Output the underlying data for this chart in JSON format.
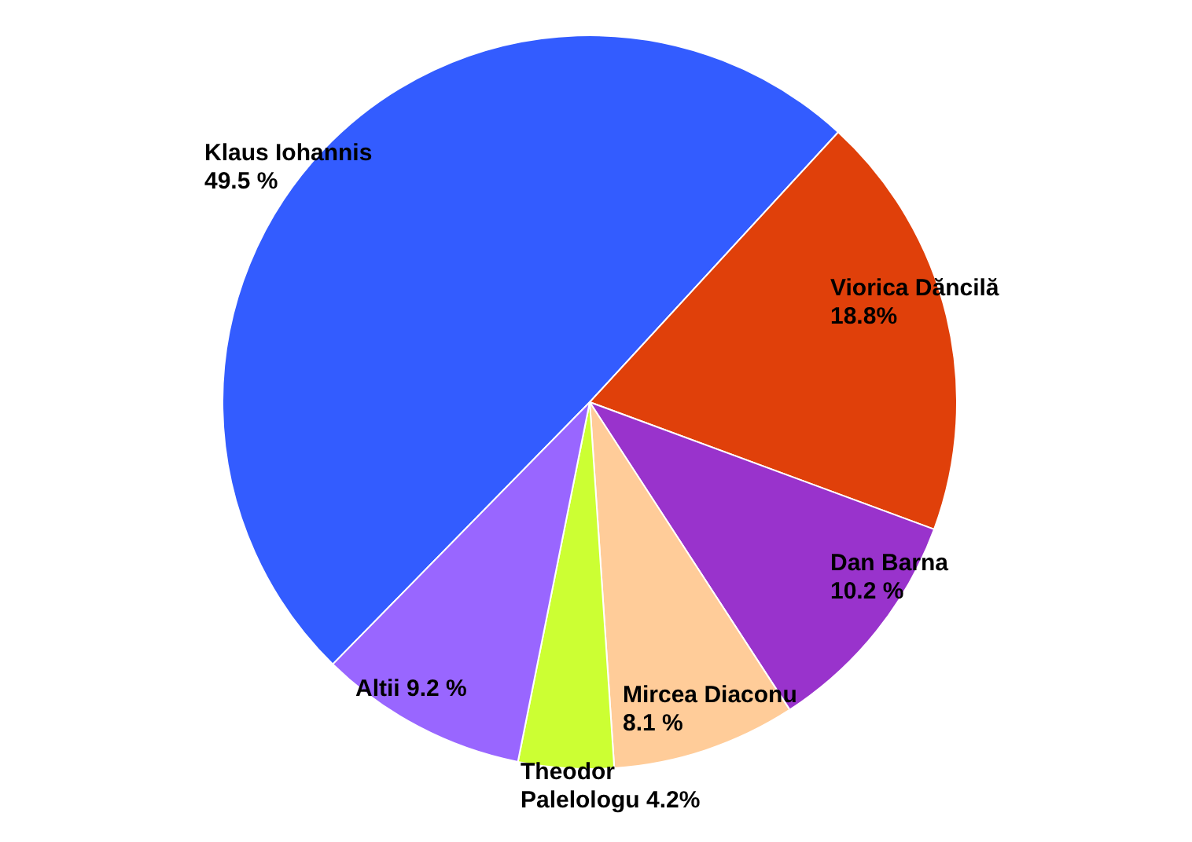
{
  "chart_data": {
    "type": "pie",
    "categories": [
      "Klaus Iohannis",
      "Viorica Dăncilă",
      "Dan Barna",
      "Mircea Diaconu",
      "Theodor Palelologu",
      "Altii"
    ],
    "values": [
      49.5,
      18.8,
      10.2,
      8.1,
      4.2,
      9.2
    ],
    "colors": [
      "#335cff",
      "#e0400a",
      "#9933cc",
      "#ffcc99",
      "#ccff33",
      "#9966ff"
    ],
    "value_labels": [
      "49.5 %",
      "18.8%",
      "10.2 %",
      "8.1 %",
      "4.2%",
      "9.2 %"
    ],
    "legend": false
  }
}
